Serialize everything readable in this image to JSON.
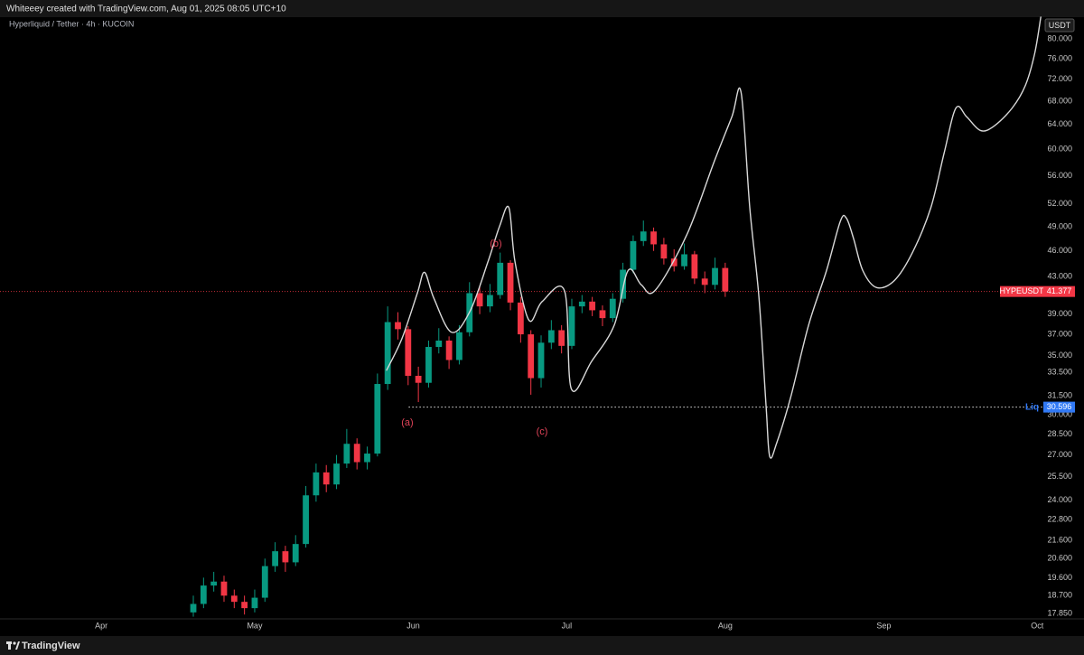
{
  "header": {
    "caption": "Whiteeey created with TradingView.com, Aug 01, 2025 08:05 UTC+10",
    "symbol": "Hyperliquid / Tether · 4h · KUCOIN"
  },
  "footer": {
    "brand": "TradingView"
  },
  "chart_data": {
    "type": "candlestick",
    "log_scale": true,
    "currency": "USDT",
    "colors": {
      "up": "#089981",
      "down": "#f23645"
    },
    "x": [
      109,
      111,
      113,
      115,
      117,
      119,
      121,
      123,
      125,
      127,
      129,
      131,
      133,
      135,
      137,
      139,
      141,
      143,
      145,
      147,
      149,
      151,
      153,
      155,
      157,
      159,
      161,
      163,
      165,
      167,
      169,
      171,
      173,
      175,
      177,
      179,
      181,
      183,
      185,
      187,
      189,
      191,
      193,
      195,
      197,
      199,
      201,
      203,
      205,
      207,
      209,
      211,
      213
    ],
    "open": [
      17.9,
      18.3,
      19.2,
      19.4,
      18.7,
      18.4,
      18.1,
      18.6,
      20.2,
      21.0,
      20.4,
      21.4,
      24.3,
      25.8,
      25.0,
      26.4,
      27.8,
      26.5,
      27.1,
      32.5,
      38.2,
      37.5,
      33.2,
      32.6,
      35.8,
      36.4,
      34.6,
      37.2,
      41.2,
      39.8,
      41.0,
      44.6,
      40.2,
      37.0,
      33.0,
      36.2,
      37.4,
      35.9,
      39.8,
      40.3,
      39.4,
      38.6,
      40.6,
      43.8,
      47.2,
      48.4,
      46.8,
      45.1,
      44.2,
      45.6,
      42.8,
      42.1,
      44.0
    ],
    "high": [
      18.7,
      19.6,
      19.9,
      19.7,
      19.0,
      18.7,
      19.0,
      20.6,
      21.5,
      21.3,
      21.9,
      24.9,
      26.4,
      26.3,
      27.0,
      28.9,
      28.2,
      27.6,
      33.4,
      39.8,
      39.2,
      37.8,
      34.0,
      36.4,
      37.6,
      36.8,
      37.9,
      42.4,
      42.0,
      42.2,
      45.8,
      44.9,
      40.8,
      37.4,
      36.9,
      38.4,
      37.9,
      40.6,
      41.0,
      40.8,
      39.9,
      41.2,
      44.6,
      47.9,
      49.8,
      48.9,
      47.6,
      46.2,
      46.9,
      46.0,
      43.6,
      45.2,
      44.6
    ],
    "low": [
      17.7,
      18.1,
      18.9,
      18.4,
      18.1,
      17.8,
      17.9,
      18.4,
      19.9,
      19.9,
      20.2,
      21.2,
      23.9,
      24.5,
      24.7,
      26.1,
      26.0,
      26.0,
      26.9,
      32.0,
      36.5,
      32.4,
      31.0,
      32.2,
      35.2,
      33.8,
      34.2,
      36.8,
      39.0,
      39.2,
      40.6,
      39.4,
      36.2,
      31.6,
      32.2,
      35.6,
      35.2,
      35.6,
      39.1,
      38.8,
      37.8,
      38.2,
      40.2,
      43.4,
      46.6,
      46.0,
      44.4,
      43.6,
      43.8,
      42.2,
      41.2,
      41.6,
      40.8
    ],
    "close": [
      18.3,
      19.2,
      19.4,
      18.7,
      18.4,
      18.1,
      18.6,
      20.2,
      21.0,
      20.4,
      21.4,
      24.3,
      25.8,
      25.0,
      26.4,
      27.8,
      26.5,
      27.1,
      32.5,
      38.2,
      37.5,
      33.2,
      32.6,
      35.8,
      36.4,
      34.6,
      37.2,
      41.2,
      39.8,
      41.0,
      44.6,
      40.2,
      37.0,
      33.0,
      36.2,
      37.4,
      35.9,
      39.8,
      40.3,
      39.4,
      38.6,
      40.6,
      43.8,
      47.2,
      48.4,
      46.8,
      45.1,
      44.2,
      45.6,
      42.8,
      42.1,
      44.0,
      41.377
    ],
    "projection": {
      "color": "#d9d9d9",
      "x": [
        146.8,
        149.8,
        152.8,
        154.2,
        156.0,
        159.5,
        163.1,
        166.6,
        168.9,
        170.7,
        171.9,
        174.6,
        177.2,
        181.6,
        182.9,
        186.9,
        191.3,
        194.0,
        196.6,
        199.3,
        205.5,
        210.8,
        214.3,
        216.1,
        217.8,
        219.6,
        221.0,
        221.7,
        223.1,
        225.8,
        229.3,
        232.8,
        235.5,
        236.7,
        238.1,
        239.9,
        242.6,
        246.1,
        249.6,
        253.2,
        255.8,
        258.1,
        260.2,
        262.9,
        265.5,
        269.1,
        271.7,
        273.5,
        274.7
      ],
      "values": [
        33.7,
        36.6,
        41.2,
        43.5,
        40.7,
        37.2,
        39.3,
        44.7,
        49.1,
        51.5,
        44.7,
        38.4,
        40.3,
        41.4,
        32.1,
        34.5,
        37.9,
        43.7,
        42.1,
        41.5,
        48.0,
        58.0,
        65.3,
        69.6,
        51.5,
        40.7,
        30.6,
        26.9,
        27.9,
        31.4,
        37.9,
        43.7,
        49.7,
        50.1,
        47.5,
        43.7,
        41.8,
        42.6,
        45.8,
        51.5,
        59.4,
        66.8,
        65.3,
        63.0,
        63.7,
        66.8,
        70.9,
        77.0,
        84.7
      ]
    },
    "last_price": {
      "name": "HYPEUSDT",
      "value": 41.377,
      "color": "#f23645"
    },
    "level": {
      "name": "Liq",
      "value": 30.596,
      "x": 151.1,
      "color": "#3179f5"
    },
    "annotations": [
      "(a)",
      "(b)",
      "(c)"
    ],
    "xlim": [
      71.2,
      275.2
    ],
    "xticks": [
      {
        "value": 91,
        "label": "Apr"
      },
      {
        "value": 121,
        "label": "May"
      },
      {
        "value": 152,
        "label": "Jun"
      },
      {
        "value": 182,
        "label": "Jul"
      },
      {
        "value": 213,
        "label": "Aug"
      },
      {
        "value": 244,
        "label": "Sep"
      },
      {
        "value": 274,
        "label": "Oct"
      }
    ],
    "ylim": [
      17.6,
      84.7
    ],
    "yticks": [
      {
        "value": 80,
        "label": "80.000"
      },
      {
        "value": 76,
        "label": "76.000"
      },
      {
        "value": 72,
        "label": "72.000"
      },
      {
        "value": 68,
        "label": "68.000"
      },
      {
        "value": 64,
        "label": "64.000"
      },
      {
        "value": 60,
        "label": "60.000"
      },
      {
        "value": 56,
        "label": "56.000"
      },
      {
        "value": 52,
        "label": "52.000"
      },
      {
        "value": 49,
        "label": "49.000"
      },
      {
        "value": 46,
        "label": "46.000"
      },
      {
        "value": 43,
        "label": "43.000"
      },
      {
        "value": 39,
        "label": "39.000"
      },
      {
        "value": 37,
        "label": "37.000"
      },
      {
        "value": 35,
        "label": "35.000"
      },
      {
        "value": 33.5,
        "label": "33.500"
      },
      {
        "value": 31.5,
        "label": "31.500"
      },
      {
        "value": 30,
        "label": "30.000"
      },
      {
        "value": 28.5,
        "label": "28.500"
      },
      {
        "value": 27,
        "label": "27.000"
      },
      {
        "value": 25.5,
        "label": "25.500"
      },
      {
        "value": 24,
        "label": "24.000"
      },
      {
        "value": 22.8,
        "label": "22.800"
      },
      {
        "value": 21.6,
        "label": "21.600"
      },
      {
        "value": 20.6,
        "label": "20.600"
      },
      {
        "value": 19.6,
        "label": "19.600"
      },
      {
        "value": 18.7,
        "label": "18.700"
      },
      {
        "value": 17.85,
        "label": "17.850"
      }
    ]
  }
}
